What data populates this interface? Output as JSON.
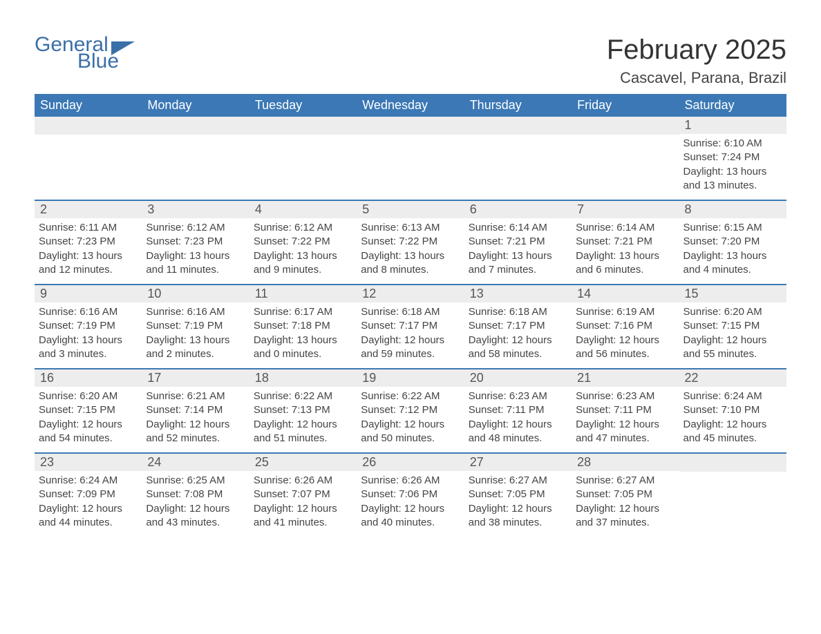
{
  "logo": {
    "word1": "General",
    "word2": "Blue",
    "color": "#3b6fa8"
  },
  "title": "February 2025",
  "subtitle": "Cascavel, Parana, Brazil",
  "colors": {
    "header_bg": "#3b78b5",
    "header_text": "#ffffff",
    "daynum_bg": "#ededed",
    "week_border": "#3b78b5",
    "body_text": "#444444",
    "page_bg": "#ffffff"
  },
  "fontsizes": {
    "title": 40,
    "subtitle": 22,
    "dayheader": 18,
    "daynum": 18,
    "info": 15
  },
  "day_names": [
    "Sunday",
    "Monday",
    "Tuesday",
    "Wednesday",
    "Thursday",
    "Friday",
    "Saturday"
  ],
  "labels": {
    "sunrise": "Sunrise",
    "sunset": "Sunset",
    "daylight": "Daylight"
  },
  "weeks": [
    [
      null,
      null,
      null,
      null,
      null,
      null,
      {
        "d": "1",
        "sr": "6:10 AM",
        "ss": "7:24 PM",
        "dl": "13 hours and 13 minutes."
      }
    ],
    [
      {
        "d": "2",
        "sr": "6:11 AM",
        "ss": "7:23 PM",
        "dl": "13 hours and 12 minutes."
      },
      {
        "d": "3",
        "sr": "6:12 AM",
        "ss": "7:23 PM",
        "dl": "13 hours and 11 minutes."
      },
      {
        "d": "4",
        "sr": "6:12 AM",
        "ss": "7:22 PM",
        "dl": "13 hours and 9 minutes."
      },
      {
        "d": "5",
        "sr": "6:13 AM",
        "ss": "7:22 PM",
        "dl": "13 hours and 8 minutes."
      },
      {
        "d": "6",
        "sr": "6:14 AM",
        "ss": "7:21 PM",
        "dl": "13 hours and 7 minutes."
      },
      {
        "d": "7",
        "sr": "6:14 AM",
        "ss": "7:21 PM",
        "dl": "13 hours and 6 minutes."
      },
      {
        "d": "8",
        "sr": "6:15 AM",
        "ss": "7:20 PM",
        "dl": "13 hours and 4 minutes."
      }
    ],
    [
      {
        "d": "9",
        "sr": "6:16 AM",
        "ss": "7:19 PM",
        "dl": "13 hours and 3 minutes."
      },
      {
        "d": "10",
        "sr": "6:16 AM",
        "ss": "7:19 PM",
        "dl": "13 hours and 2 minutes."
      },
      {
        "d": "11",
        "sr": "6:17 AM",
        "ss": "7:18 PM",
        "dl": "13 hours and 0 minutes."
      },
      {
        "d": "12",
        "sr": "6:18 AM",
        "ss": "7:17 PM",
        "dl": "12 hours and 59 minutes."
      },
      {
        "d": "13",
        "sr": "6:18 AM",
        "ss": "7:17 PM",
        "dl": "12 hours and 58 minutes."
      },
      {
        "d": "14",
        "sr": "6:19 AM",
        "ss": "7:16 PM",
        "dl": "12 hours and 56 minutes."
      },
      {
        "d": "15",
        "sr": "6:20 AM",
        "ss": "7:15 PM",
        "dl": "12 hours and 55 minutes."
      }
    ],
    [
      {
        "d": "16",
        "sr": "6:20 AM",
        "ss": "7:15 PM",
        "dl": "12 hours and 54 minutes."
      },
      {
        "d": "17",
        "sr": "6:21 AM",
        "ss": "7:14 PM",
        "dl": "12 hours and 52 minutes."
      },
      {
        "d": "18",
        "sr": "6:22 AM",
        "ss": "7:13 PM",
        "dl": "12 hours and 51 minutes."
      },
      {
        "d": "19",
        "sr": "6:22 AM",
        "ss": "7:12 PM",
        "dl": "12 hours and 50 minutes."
      },
      {
        "d": "20",
        "sr": "6:23 AM",
        "ss": "7:11 PM",
        "dl": "12 hours and 48 minutes."
      },
      {
        "d": "21",
        "sr": "6:23 AM",
        "ss": "7:11 PM",
        "dl": "12 hours and 47 minutes."
      },
      {
        "d": "22",
        "sr": "6:24 AM",
        "ss": "7:10 PM",
        "dl": "12 hours and 45 minutes."
      }
    ],
    [
      {
        "d": "23",
        "sr": "6:24 AM",
        "ss": "7:09 PM",
        "dl": "12 hours and 44 minutes."
      },
      {
        "d": "24",
        "sr": "6:25 AM",
        "ss": "7:08 PM",
        "dl": "12 hours and 43 minutes."
      },
      {
        "d": "25",
        "sr": "6:26 AM",
        "ss": "7:07 PM",
        "dl": "12 hours and 41 minutes."
      },
      {
        "d": "26",
        "sr": "6:26 AM",
        "ss": "7:06 PM",
        "dl": "12 hours and 40 minutes."
      },
      {
        "d": "27",
        "sr": "6:27 AM",
        "ss": "7:05 PM",
        "dl": "12 hours and 38 minutes."
      },
      {
        "d": "28",
        "sr": "6:27 AM",
        "ss": "7:05 PM",
        "dl": "12 hours and 37 minutes."
      },
      null
    ]
  ]
}
